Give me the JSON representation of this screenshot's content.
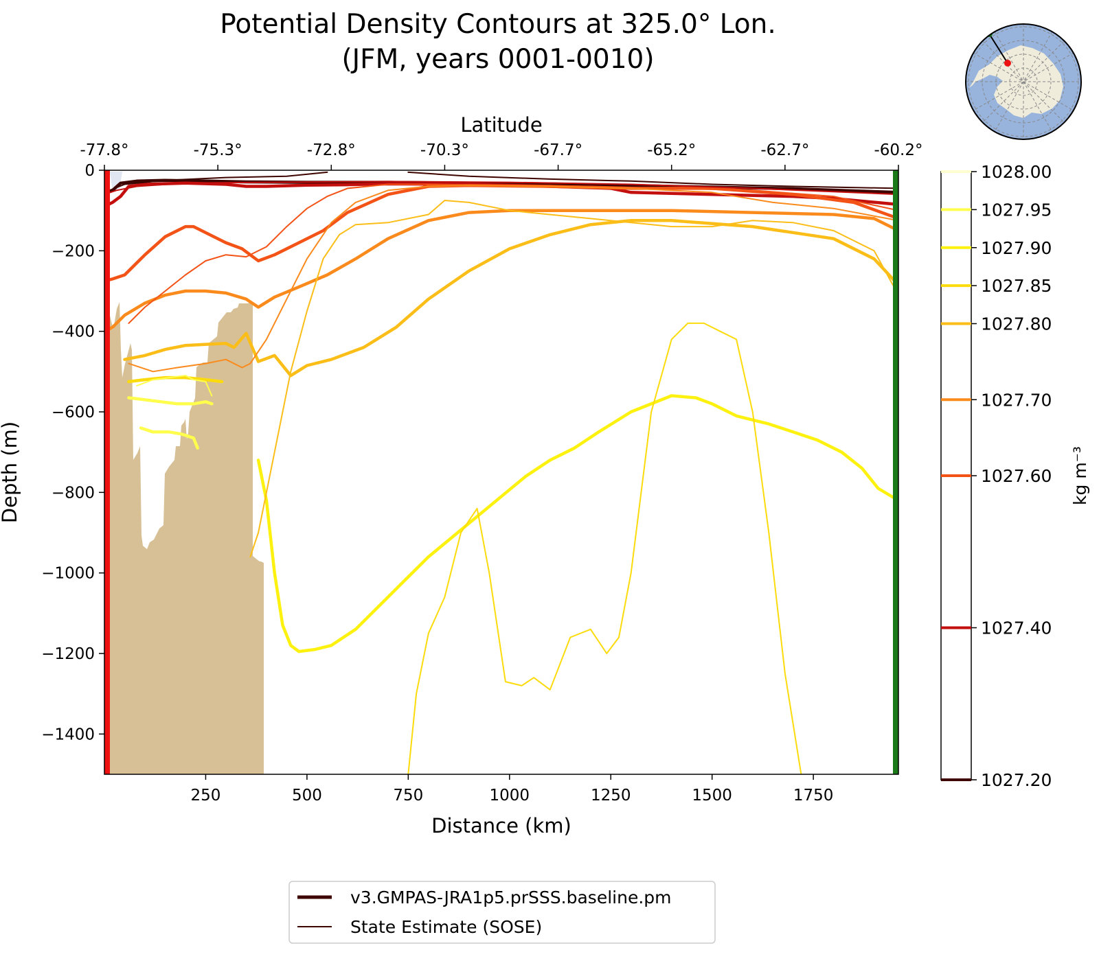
{
  "title_line1": "Potential Density Contours at 325.0° Lon.",
  "title_line2": "(JFM, years 0001-0010)",
  "chart_data": {
    "type": "line",
    "title": "Potential Density Contours at 325.0° Lon. (JFM, years 0001-0010)",
    "xlabel": "Distance (km)",
    "ylabel": "Depth (m)",
    "top_xlabel": "Latitude",
    "xlim": [
      0,
      1960
    ],
    "ylim": [
      -1500,
      0
    ],
    "xticks": [
      250,
      500,
      750,
      1000,
      1250,
      1500,
      1750
    ],
    "yticks": [
      0,
      -200,
      -400,
      -600,
      -800,
      -1000,
      -1200,
      -1400
    ],
    "lat_tick_labels": [
      "-77.8°",
      "-75.3°",
      "-72.8°",
      "-70.3°",
      "-67.7°",
      "-65.2°",
      "-62.7°",
      "-60.2°"
    ],
    "lat_tick_positions_km": [
      0,
      280,
      560,
      840,
      1120,
      1400,
      1680,
      1960
    ],
    "colorbar": {
      "label": "kg m⁻³",
      "levels": [
        1027.2,
        1027.4,
        1027.6,
        1027.7,
        1027.8,
        1027.85,
        1027.9,
        1027.95,
        1028.0
      ],
      "tick_labels": [
        "1027.20",
        "1027.40",
        "1027.60",
        "1027.70",
        "1027.80",
        "1027.85",
        "1027.90",
        "1027.95",
        "1028.00"
      ],
      "colors": [
        "#3d0400",
        "#c40f0f",
        "#f35316",
        "#fb8a1d",
        "#fbbe18",
        "#fcdb0c",
        "#fdf20f",
        "#fffe4c",
        "#fffed0"
      ]
    },
    "legend": [
      {
        "label": "v3.GMPAS-JRA1p5.prSSS.baseline.pm",
        "style": "thick"
      },
      {
        "label": "State Estimate (SOSE)",
        "style": "thin"
      }
    ],
    "section_start_color": "#ee1111",
    "section_end_color": "#1a7a1a",
    "land_color": "#d7c095",
    "series": [
      {
        "source": "model",
        "level": 1027.2,
        "x": [
          0,
          20,
          40,
          80,
          150,
          250,
          350,
          500,
          700,
          900,
          1100,
          1300,
          1500,
          1700,
          1960
        ],
        "y": [
          -55,
          -50,
          -32,
          -27,
          -25,
          -27,
          -29,
          -30,
          -30,
          -32,
          -34,
          -38,
          -42,
          -46,
          -55
        ]
      },
      {
        "source": "model",
        "level": 1027.4,
        "x": [
          0,
          20,
          40,
          60,
          100,
          200,
          300,
          350,
          400,
          500,
          600,
          700,
          900,
          1100,
          1250,
          1300,
          1500,
          1700,
          1800,
          1960
        ],
        "y": [
          -90,
          -80,
          -65,
          -40,
          -35,
          -32,
          -35,
          -40,
          -40,
          -37,
          -36,
          -34,
          -35,
          -40,
          -45,
          -55,
          -60,
          -65,
          -70,
          -85
        ]
      },
      {
        "source": "model",
        "level": 1027.6,
        "x": [
          0,
          20,
          50,
          100,
          150,
          200,
          220,
          260,
          300,
          340,
          380,
          420,
          480,
          540,
          600,
          700,
          800,
          900,
          1100,
          1300,
          1500,
          1700,
          1850,
          1960
        ],
        "y": [
          -275,
          -270,
          -260,
          -210,
          -165,
          -140,
          -140,
          -160,
          -180,
          -195,
          -225,
          -210,
          -180,
          -150,
          -105,
          -60,
          -40,
          -38,
          -40,
          -45,
          -45,
          -60,
          -80,
          -120
        ]
      },
      {
        "source": "model",
        "level": 1027.7,
        "x": [
          0,
          20,
          50,
          100,
          150,
          200,
          250,
          300,
          350,
          380,
          420,
          480,
          550,
          620,
          700,
          800,
          900,
          1000,
          1200,
          1400,
          1600,
          1800,
          1900,
          1960
        ],
        "y": [
          -400,
          -390,
          -360,
          -330,
          -310,
          -300,
          -300,
          -305,
          -320,
          -340,
          -315,
          -290,
          -260,
          -220,
          -170,
          -125,
          -105,
          -100,
          -100,
          -100,
          -105,
          -110,
          -120,
          -150
        ]
      },
      {
        "source": "model",
        "level": 1027.8,
        "x": [
          50,
          100,
          150,
          200,
          260,
          300,
          320,
          350,
          380,
          420,
          460,
          500,
          560,
          640,
          720,
          800,
          900,
          1000,
          1100,
          1200,
          1300,
          1400,
          1600,
          1800,
          1900,
          1960
        ],
        "y": [
          -470,
          -460,
          -445,
          -435,
          -432,
          -430,
          -440,
          -405,
          -475,
          -460,
          -510,
          -485,
          -470,
          -440,
          -390,
          -320,
          -250,
          -195,
          -160,
          -135,
          -125,
          -125,
          -140,
          -170,
          -220,
          -285
        ]
      },
      {
        "source": "model",
        "level": 1027.85,
        "x": [
          60,
          100,
          150,
          200,
          250,
          290
        ],
        "y": [
          -525,
          -520,
          -515,
          -515,
          -520,
          -525
        ]
      },
      {
        "source": "model",
        "level": 1027.9,
        "x": [
          380,
          400,
          420,
          440,
          460,
          480,
          520,
          560,
          620,
          680,
          740,
          800,
          860,
          920,
          980,
          1040,
          1100,
          1160,
          1220,
          1300,
          1400,
          1460,
          1500,
          1560,
          1640,
          1700,
          1760,
          1820,
          1870,
          1910,
          1960
        ],
        "y": [
          -720,
          -820,
          -1000,
          -1130,
          -1180,
          -1195,
          -1190,
          -1180,
          -1140,
          -1080,
          -1020,
          -960,
          -910,
          -860,
          -810,
          -760,
          -720,
          -690,
          -650,
          -600,
          -560,
          -565,
          -580,
          -610,
          -630,
          -650,
          -670,
          -700,
          -740,
          -790,
          -820
        ]
      },
      {
        "source": "model",
        "level": 1027.95,
        "x": [
          60,
          100,
          140,
          180,
          220,
          250,
          265
        ],
        "y": [
          -565,
          -570,
          -575,
          -580,
          -580,
          -575,
          -580
        ]
      },
      {
        "source": "model",
        "level": 1027.95,
        "x": [
          90,
          120,
          160,
          190,
          220,
          230
        ],
        "y": [
          -640,
          -650,
          -650,
          -655,
          -665,
          -690
        ]
      },
      {
        "source": "sose",
        "level": 1027.2,
        "x": [
          0,
          50,
          150,
          300,
          450,
          550
        ],
        "y": [
          -55,
          -35,
          -25,
          -18,
          -15,
          -5
        ]
      },
      {
        "source": "sose",
        "level": 1027.2,
        "x": [
          750,
          900,
          1100,
          1300,
          1500,
          1700,
          1960
        ],
        "y": [
          -5,
          -15,
          -22,
          -27,
          -35,
          -40,
          -45
        ]
      },
      {
        "source": "sose",
        "level": 1027.4,
        "x": [
          0,
          30,
          80,
          200,
          400,
          700,
          1000,
          1300,
          1600,
          1960
        ],
        "y": [
          -60,
          -50,
          -40,
          -32,
          -30,
          -28,
          -30,
          -35,
          -45,
          -60
        ]
      },
      {
        "source": "sose",
        "level": 1027.6,
        "x": [
          60,
          100,
          150,
          200,
          250,
          300,
          350,
          400,
          450,
          500,
          550,
          600,
          700,
          800,
          1000,
          1200,
          1400,
          1600,
          1800,
          1960
        ],
        "y": [
          -380,
          -340,
          -300,
          -260,
          -225,
          -210,
          -215,
          -190,
          -140,
          -95,
          -65,
          -45,
          -35,
          -35,
          -38,
          -40,
          -45,
          -50,
          -65,
          -100
        ]
      },
      {
        "source": "sose",
        "level": 1027.7,
        "x": [
          60,
          120,
          180,
          250,
          300,
          340,
          360,
          400,
          450,
          500,
          560,
          620,
          700,
          800,
          900,
          1100,
          1300,
          1500,
          1650,
          1800,
          1960
        ],
        "y": [
          -480,
          -500,
          -490,
          -480,
          -470,
          -490,
          -480,
          -420,
          -320,
          -220,
          -130,
          -80,
          -50,
          -40,
          -38,
          -40,
          -45,
          -55,
          -80,
          -95,
          -125
        ]
      },
      {
        "source": "sose",
        "level": 1027.8,
        "x": [
          360,
          380,
          420,
          460,
          500,
          540,
          580,
          620,
          700,
          800,
          840,
          900,
          1000,
          1200,
          1400,
          1500,
          1600,
          1700,
          1800,
          1900,
          1960
        ],
        "y": [
          -960,
          -900,
          -700,
          -500,
          -350,
          -220,
          -160,
          -135,
          -130,
          -110,
          -75,
          -80,
          -100,
          -120,
          -140,
          -140,
          -125,
          -130,
          -150,
          -200,
          -310
        ]
      },
      {
        "source": "sose",
        "level": 1027.85,
        "x": [
          750,
          770,
          800,
          840,
          880,
          920,
          950,
          990,
          1030,
          1060,
          1100,
          1150,
          1200,
          1240,
          1270,
          1300,
          1350,
          1400,
          1440,
          1480,
          1520,
          1560,
          1600,
          1640,
          1680,
          1720
        ],
        "y": [
          -1500,
          -1300,
          -1150,
          -1060,
          -900,
          -840,
          -1000,
          -1270,
          -1280,
          -1260,
          -1290,
          -1160,
          -1140,
          -1200,
          -1160,
          -1000,
          -600,
          -420,
          -380,
          -380,
          -400,
          -420,
          -600,
          -900,
          -1250,
          -1500
        ]
      },
      {
        "source": "sose",
        "level": 1027.95,
        "x": [
          80,
          120,
          160,
          200,
          220,
          250,
          265
        ],
        "y": [
          -535,
          -520,
          -515,
          -510,
          -520,
          -525,
          -560
        ]
      }
    ]
  },
  "inset_map": {
    "ocean_color": "#98b4dd",
    "land_color": "#efecdb"
  }
}
